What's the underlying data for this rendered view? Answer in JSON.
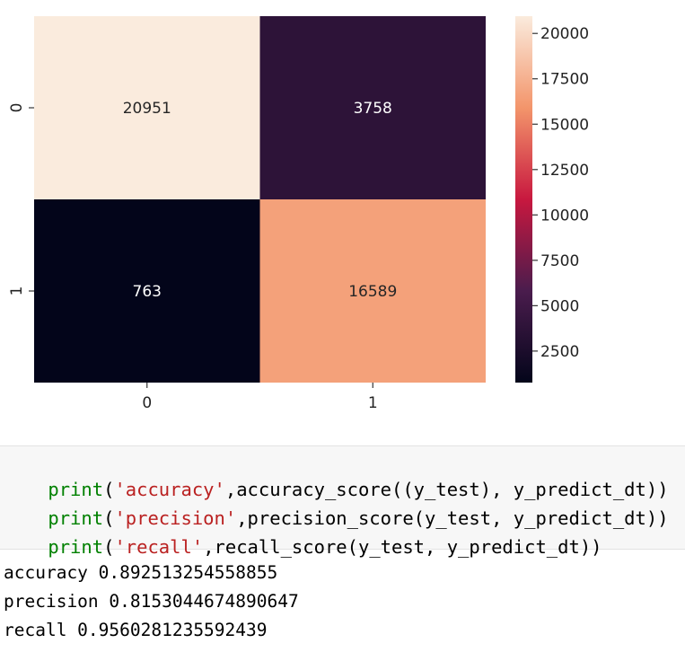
{
  "chart_data": {
    "type": "heatmap",
    "title": "",
    "xlabel": "",
    "ylabel": "",
    "x_categories": [
      "0",
      "1"
    ],
    "y_categories": [
      "0",
      "1"
    ],
    "values": [
      [
        20951,
        3758
      ],
      [
        763,
        16589
      ]
    ],
    "annotations": [
      [
        "20951",
        "3758"
      ],
      [
        "763",
        "16589"
      ]
    ],
    "colormap": "rocket",
    "colorbar": {
      "min": 763,
      "max": 20951,
      "ticks": [
        2500,
        5000,
        7500,
        10000,
        12500,
        15000,
        17500,
        20000
      ],
      "tick_labels": [
        "2500",
        "5000",
        "7500",
        "10000",
        "12500",
        "15000",
        "17500",
        "20000"
      ],
      "placement": "right"
    },
    "colors": {
      "high": "#faebdd",
      "mid_high": "#f3956b",
      "mid": "#c8183f",
      "mid_low": "#4a1c4d",
      "low": "#03051a"
    }
  },
  "code_cell": {
    "lines": [
      [
        {
          "t": "print",
          "c": "kw"
        },
        {
          "t": "(",
          "c": ""
        },
        {
          "t": "'accuracy'",
          "c": "str"
        },
        {
          "t": ",accuracy_score((y_test), y_predict_dt))",
          "c": ""
        }
      ],
      [
        {
          "t": "print",
          "c": "kw"
        },
        {
          "t": "(",
          "c": ""
        },
        {
          "t": "'precision'",
          "c": "str"
        },
        {
          "t": ",precision_score(y_test, y_predict_dt))",
          "c": ""
        }
      ],
      [
        {
          "t": "print",
          "c": "kw"
        },
        {
          "t": "(",
          "c": ""
        },
        {
          "t": "'recall'",
          "c": "str"
        },
        {
          "t": ",recall_score(y_test, y_predict_dt))",
          "c": ""
        }
      ]
    ]
  },
  "output": {
    "lines": [
      "accuracy 0.892513254558855",
      "precision 0.8153044674890647",
      "recall 0.9560281235592439"
    ]
  }
}
